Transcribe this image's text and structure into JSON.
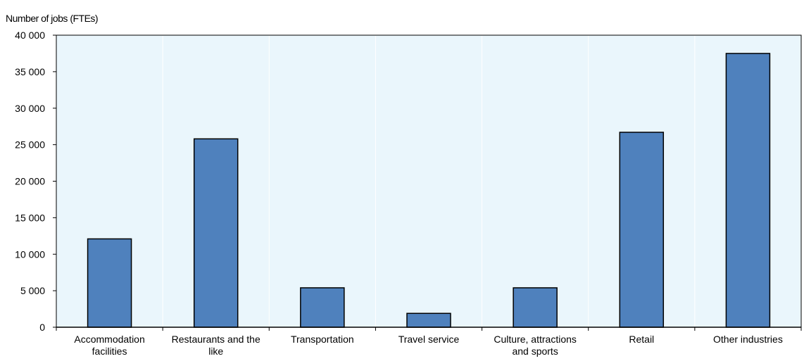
{
  "chart_data": {
    "type": "bar",
    "ylabel": "Number of jobs (FTEs)",
    "xlabel": "",
    "title": "",
    "categories": [
      [
        "Accommodation",
        "facilities"
      ],
      [
        "Restaurants and the",
        "like"
      ],
      [
        "Transportation"
      ],
      [
        "Travel service"
      ],
      [
        "Culture, attractions",
        "and sports"
      ],
      [
        "Retail"
      ],
      [
        "Other industries"
      ]
    ],
    "values": [
      12100,
      25800,
      5400,
      1900,
      5400,
      26700,
      37500
    ],
    "ylim": [
      0,
      40000
    ],
    "yticks": [
      0,
      5000,
      10000,
      15000,
      20000,
      25000,
      30000,
      35000,
      40000
    ],
    "ytick_labels": [
      "0",
      "5 000",
      "10 000",
      "15 000",
      "20 000",
      "25 000",
      "30 000",
      "35 000",
      "40 000"
    ],
    "grid": "vertical separators between categories",
    "colors": {
      "bar": "#4f81bd",
      "bar_edge": "#000000",
      "plot_bg": "#eaf6fc",
      "grid": "#ffffff"
    }
  }
}
